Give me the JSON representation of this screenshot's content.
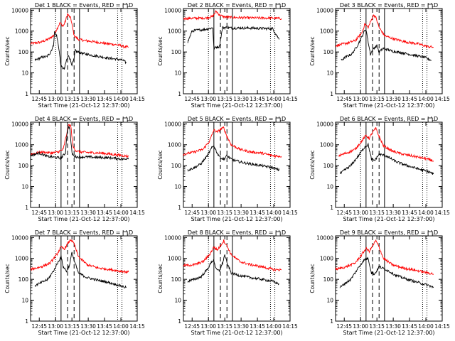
{
  "figure": {
    "xlabel": "Start Time (21-Oct-12 12:37:00)",
    "ylabel": "Counts/sec",
    "x_tick_labels": [
      "12:45",
      "13:00",
      "13:15",
      "13:30",
      "13:45",
      "14:00",
      "14:15"
    ],
    "y_tick_labels": [
      "1",
      "10",
      "100",
      "1000",
      "10000"
    ],
    "colors": {
      "events": "#000000",
      "lld": "#ff0000",
      "axes": "#000000"
    }
  },
  "chart_data": [
    {
      "type": "line",
      "title": "Det 1 BLACK = Events, RED = LLD",
      "xlabel": "Start Time (21-Oct-12 12:37:00)",
      "ylabel": "Counts/sec",
      "x_unit": "minutes since 12:37:00",
      "xlim": [
        0,
        98
      ],
      "ylim": [
        1,
        12000
      ],
      "yscale": "log",
      "interval_lines": {
        "solid": [
          28,
          45
        ],
        "dashed": [
          34,
          40
        ],
        "dotted": [
          23,
          80,
          84
        ]
      },
      "series": [
        {
          "color": "#ff0000",
          "x": [
            0,
            10,
            16,
            21,
            24,
            27,
            30,
            32,
            34,
            37,
            40,
            44,
            50,
            60,
            70,
            80,
            86,
            90
          ],
          "y": [
            250,
            300,
            400,
            600,
            1200,
            2500,
            1700,
            3000,
            6500,
            4000,
            600,
            400,
            350,
            300,
            250,
            220,
            180,
            170
          ]
        },
        {
          "color": "#000000",
          "x": [
            4,
            10,
            15,
            18,
            21,
            22,
            24,
            26,
            28,
            31,
            33,
            35,
            38,
            40,
            41,
            43,
            48,
            56,
            64,
            72,
            80,
            85,
            88
          ],
          "y": [
            40,
            55,
            60,
            90,
            200,
            900,
            600,
            150,
            20,
            15,
            40,
            70,
            25,
            45,
            120,
            100,
            85,
            70,
            60,
            50,
            45,
            40,
            30
          ]
        }
      ]
    },
    {
      "type": "line",
      "title": "Det 2 BLACK = Events, RED = LLD",
      "xlabel": "Start Time (21-Oct-12 12:37:00)",
      "ylabel": "Counts/sec",
      "x_unit": "minutes since 12:37:00",
      "xlim": [
        0,
        98
      ],
      "ylim": [
        1,
        12000
      ],
      "yscale": "log",
      "interval_lines": {
        "solid": [
          28,
          45
        ],
        "dashed": [
          34,
          40
        ],
        "dotted": [
          23,
          80,
          84
        ]
      },
      "series": [
        {
          "color": "#ff0000",
          "x": [
            0,
            20,
            27,
            30,
            33,
            36,
            40,
            45,
            60,
            80,
            90
          ],
          "y": [
            4000,
            4200,
            5000,
            9000,
            6000,
            5000,
            4600,
            4500,
            4300,
            4200,
            4000
          ]
        },
        {
          "color": "#000000",
          "x": [
            4,
            8,
            12,
            20,
            26,
            27,
            28,
            30,
            33,
            36,
            38,
            40,
            45,
            60,
            70,
            82,
            88
          ],
          "y": [
            300,
            1000,
            1100,
            1200,
            1400,
            1500,
            150,
            170,
            180,
            1500,
            1450,
            1500,
            1400,
            1400,
            1350,
            1300,
            400
          ]
        }
      ]
    },
    {
      "type": "line",
      "title": "Det 3 BLACK = Events, RED = LLD",
      "xlabel": "Start Time (21-Oct-12 12:37:00)",
      "ylabel": "Counts/sec",
      "x_unit": "minutes since 12:37:00",
      "xlim": [
        0,
        98
      ],
      "ylim": [
        1,
        12000
      ],
      "yscale": "log",
      "interval_lines": {
        "solid": [
          28,
          45
        ],
        "dashed": [
          34,
          40
        ],
        "dotted": [
          23,
          80,
          84
        ]
      },
      "series": [
        {
          "color": "#ff0000",
          "x": [
            0,
            10,
            18,
            24,
            27,
            30,
            33,
            35,
            37,
            40,
            45,
            55,
            65,
            75,
            85,
            90
          ],
          "y": [
            200,
            260,
            350,
            800,
            2200,
            1500,
            3500,
            6000,
            4500,
            1500,
            600,
            400,
            300,
            250,
            180,
            170
          ]
        },
        {
          "color": "#000000",
          "x": [
            5,
            10,
            15,
            20,
            24,
            26,
            28,
            30,
            32,
            35,
            38,
            40,
            44,
            52,
            62,
            72,
            82,
            88
          ],
          "y": [
            40,
            60,
            80,
            200,
            500,
            900,
            1200,
            300,
            80,
            150,
            200,
            100,
            150,
            110,
            90,
            70,
            55,
            40
          ]
        }
      ]
    },
    {
      "type": "line",
      "title": "Det 4 BLACK = Events, RED = LLD",
      "xlabel": "Start Time (21-Oct-12 12:37:00)",
      "ylabel": "Counts/sec",
      "x_unit": "minutes since 12:37:00",
      "xlim": [
        0,
        98
      ],
      "ylim": [
        1,
        12000
      ],
      "yscale": "log",
      "interval_lines": {
        "solid": [
          28,
          45
        ],
        "dashed": [
          34,
          40
        ],
        "dotted": [
          23,
          80,
          84
        ]
      },
      "series": [
        {
          "color": "#ff0000",
          "x": [
            0,
            10,
            20,
            25,
            30,
            33,
            35,
            37,
            39,
            42,
            46,
            55,
            65,
            75,
            85,
            90
          ],
          "y": [
            350,
            450,
            400,
            450,
            600,
            3000,
            9000,
            8000,
            800,
            500,
            450,
            420,
            400,
            350,
            300,
            280
          ]
        },
        {
          "color": "#000000",
          "x": [
            0,
            8,
            15,
            22,
            28,
            32,
            34,
            36,
            38,
            40,
            43,
            50,
            60,
            70,
            80,
            86,
            90
          ],
          "y": [
            300,
            400,
            280,
            250,
            230,
            400,
            7000,
            6500,
            400,
            280,
            260,
            260,
            250,
            240,
            220,
            200,
            240
          ]
        }
      ]
    },
    {
      "type": "line",
      "title": "Det 5 BLACK = Events, RED = LLD",
      "xlabel": "Start Time (21-Oct-12 12:37:00)",
      "ylabel": "Counts/sec",
      "x_unit": "minutes since 12:37:00",
      "xlim": [
        0,
        98
      ],
      "ylim": [
        1,
        12000
      ],
      "yscale": "log",
      "interval_lines": {
        "solid": [
          28,
          45
        ],
        "dashed": [
          34,
          40
        ],
        "dotted": [
          23,
          80,
          84
        ]
      },
      "series": [
        {
          "color": "#ff0000",
          "x": [
            0,
            10,
            18,
            24,
            28,
            31,
            34,
            37,
            40,
            44,
            52,
            62,
            72,
            82,
            90
          ],
          "y": [
            350,
            450,
            600,
            1500,
            5000,
            4000,
            5500,
            6500,
            2500,
            1000,
            600,
            450,
            400,
            300,
            280
          ]
        },
        {
          "color": "#000000",
          "x": [
            4,
            10,
            16,
            22,
            26,
            28,
            31,
            34,
            37,
            40,
            44,
            52,
            62,
            72,
            82,
            88
          ],
          "y": [
            60,
            80,
            120,
            300,
            700,
            900,
            400,
            250,
            200,
            300,
            200,
            150,
            120,
            100,
            80,
            60
          ]
        }
      ]
    },
    {
      "type": "line",
      "title": "Det 6 BLACK = Events, RED = LLD",
      "xlabel": "Start Time (21-Oct-12 12:37:00)",
      "ylabel": "Counts/sec",
      "x_unit": "minutes since 12:37:00",
      "xlim": [
        0,
        98
      ],
      "ylim": [
        1,
        12000
      ],
      "yscale": "log",
      "interval_lines": {
        "solid": [
          28,
          45
        ],
        "dashed": [
          34,
          40
        ],
        "dotted": [
          23,
          80,
          84
        ]
      },
      "series": [
        {
          "color": "#ff0000",
          "x": [
            3,
            10,
            18,
            24,
            28,
            31,
            34,
            37,
            40,
            44,
            52,
            62,
            72,
            82,
            90
          ],
          "y": [
            300,
            400,
            600,
            1500,
            2800,
            2000,
            4000,
            6000,
            2500,
            900,
            500,
            350,
            280,
            220,
            170
          ]
        },
        {
          "color": "#000000",
          "x": [
            4,
            8,
            14,
            20,
            24,
            27,
            30,
            33,
            36,
            40,
            46,
            56,
            66,
            76,
            86,
            90
          ],
          "y": [
            40,
            60,
            100,
            250,
            500,
            800,
            1000,
            200,
            180,
            350,
            300,
            150,
            100,
            70,
            50,
            40
          ]
        }
      ]
    },
    {
      "type": "line",
      "title": "Det 7 BLACK = Events, RED = LLD",
      "xlabel": "Start Time (21-Oct-12 12:37:00)",
      "ylabel": "Counts/sec",
      "x_unit": "minutes since 12:37:00",
      "xlim": [
        0,
        98
      ],
      "ylim": [
        1,
        12000
      ],
      "yscale": "log",
      "interval_lines": {
        "solid": [
          28,
          45
        ],
        "dashed": [
          34,
          40
        ],
        "dotted": [
          23,
          80,
          84
        ]
      },
      "series": [
        {
          "color": "#ff0000",
          "x": [
            0,
            10,
            18,
            24,
            28,
            31,
            34,
            37,
            40,
            44,
            52,
            62,
            72,
            82,
            90
          ],
          "y": [
            300,
            400,
            600,
            1500,
            3500,
            2800,
            5000,
            8000,
            5000,
            1200,
            500,
            350,
            300,
            250,
            220
          ]
        },
        {
          "color": "#000000",
          "x": [
            4,
            10,
            16,
            22,
            26,
            28,
            30,
            33,
            36,
            38,
            40,
            44,
            52,
            62,
            72,
            82,
            88
          ],
          "y": [
            50,
            70,
            100,
            300,
            800,
            1200,
            400,
            250,
            500,
            2000,
            800,
            200,
            120,
            90,
            70,
            50,
            40
          ]
        }
      ]
    },
    {
      "type": "line",
      "title": "Det 8 BLACK = Events, RED = LLD",
      "xlabel": "Start Time (21-Oct-12 12:37:00)",
      "ylabel": "Counts/sec",
      "x_unit": "minutes since 12:37:00",
      "xlim": [
        0,
        98
      ],
      "ylim": [
        1,
        12000
      ],
      "yscale": "log",
      "interval_lines": {
        "solid": [
          28,
          45
        ],
        "dashed": [
          34,
          40
        ],
        "dotted": [
          23,
          80,
          84
        ]
      },
      "series": [
        {
          "color": "#ff0000",
          "x": [
            0,
            10,
            18,
            24,
            28,
            31,
            34,
            37,
            40,
            44,
            52,
            62,
            72,
            82,
            90
          ],
          "y": [
            450,
            500,
            700,
            1500,
            3500,
            2500,
            4000,
            7000,
            4000,
            1500,
            700,
            500,
            400,
            300,
            280
          ]
        },
        {
          "color": "#000000",
          "x": [
            4,
            10,
            16,
            22,
            26,
            28,
            30,
            33,
            36,
            38,
            40,
            44,
            52,
            62,
            72,
            82,
            88
          ],
          "y": [
            80,
            100,
            130,
            300,
            700,
            800,
            300,
            250,
            600,
            1500,
            600,
            200,
            150,
            120,
            100,
            80,
            60
          ]
        }
      ]
    },
    {
      "type": "line",
      "title": "Det 9 BLACK = Events, RED = LLD",
      "xlabel": "Start Time (21-Oct-12 12:37:00)",
      "ylabel": "Counts/sec",
      "x_unit": "minutes since 12:37:00",
      "xlim": [
        0,
        98
      ],
      "ylim": [
        1,
        12000
      ],
      "yscale": "log",
      "interval_lines": {
        "solid": [
          28,
          45
        ],
        "dashed": [
          34,
          40
        ],
        "dotted": [
          23,
          80,
          84
        ]
      },
      "series": [
        {
          "color": "#ff0000",
          "x": [
            0,
            10,
            18,
            24,
            28,
            31,
            34,
            37,
            40,
            44,
            52,
            62,
            72,
            82,
            90
          ],
          "y": [
            300,
            400,
            600,
            1500,
            3000,
            2200,
            4000,
            7000,
            3500,
            1000,
            500,
            350,
            280,
            220,
            180
          ]
        },
        {
          "color": "#000000",
          "x": [
            4,
            8,
            14,
            20,
            24,
            27,
            30,
            33,
            36,
            40,
            46,
            56,
            66,
            76,
            86,
            90
          ],
          "y": [
            40,
            60,
            100,
            300,
            600,
            900,
            1000,
            200,
            180,
            400,
            300,
            150,
            100,
            70,
            50,
            40
          ]
        }
      ]
    }
  ]
}
